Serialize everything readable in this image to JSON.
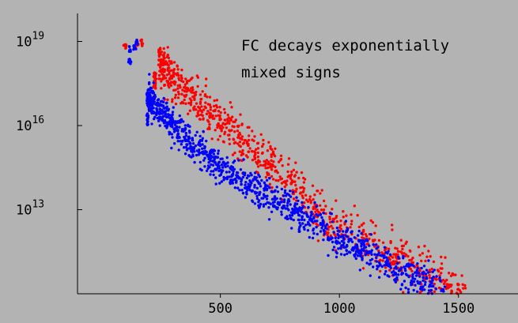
{
  "chart_data": {
    "type": "scatter",
    "y_scale": "log",
    "background": "#b3b3b3",
    "annotations": [
      "FC decays exponentially",
      "mixed signs"
    ],
    "xlim": [
      -100,
      1750
    ],
    "ylim": [
      10000000000.0,
      1e+20
    ],
    "x_ticks": [
      500,
      1000,
      1500
    ],
    "x_tick_labels": [
      "500",
      "1000",
      "1500"
    ],
    "y_ticks": [
      10000000000000.0,
      1e+16,
      1e+19
    ],
    "y_tick_labels": [
      {
        "base": "10",
        "exp": "13"
      },
      {
        "base": "10",
        "exp": "16"
      },
      {
        "base": "10",
        "exp": "19"
      }
    ],
    "series": [
      {
        "color": "#ff0000",
        "seed": 7,
        "cluster_top": [
          [
            100,
            7e+18
          ],
          [
            150,
            8e+18
          ],
          [
            170,
            9e+18
          ]
        ],
        "spike": {
          "x": 225,
          "y_from": 2e+17,
          "y_to": 8e+17
        },
        "ridge": [
          [
            240,
            1.5e+18
          ],
          [
            300,
            5e+17
          ],
          [
            450,
            3e+16
          ],
          [
            700,
            500000000000000.0
          ],
          [
            1000,
            2000000000000.0
          ],
          [
            1300,
            100000000000.0
          ],
          [
            1530,
            10000000000.0
          ]
        ],
        "spread_decades": 1.3,
        "count": 900
      },
      {
        "color": "#0000ff",
        "seed": 19,
        "cluster_top": [
          [
            120,
            5e+18
          ],
          [
            140,
            6e+18
          ],
          [
            150,
            9e+18
          ],
          [
            120,
            2e+18
          ]
        ],
        "spike": {
          "x": 195,
          "y_from": 1e+16,
          "y_to": 2e+17
        },
        "ridge": [
          [
            200,
            1e+17
          ],
          [
            300,
            1e+16
          ],
          [
            500,
            300000000000000.0
          ],
          [
            700,
            30000000000000.0
          ],
          [
            1000,
            1000000000000.0
          ],
          [
            1300,
            50000000000.0
          ],
          [
            1450,
            10000000000.0
          ]
        ],
        "spread_decades": 1.0,
        "count": 1100
      }
    ]
  }
}
